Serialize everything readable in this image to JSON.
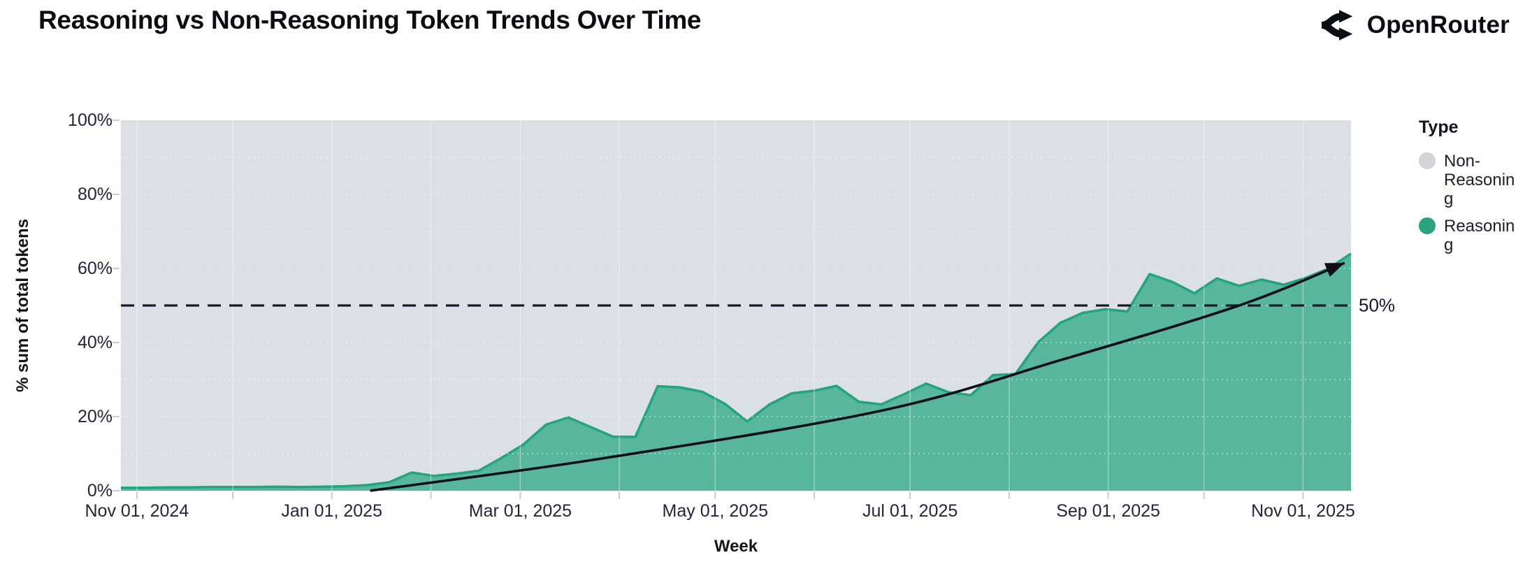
{
  "header": {
    "title": "Reasoning vs Non-Reasoning Token Trends Over Time",
    "brand": "OpenRouter"
  },
  "legend": {
    "title": "Type",
    "items": [
      {
        "label": "Non-Reasoning",
        "color": "#d2d4da"
      },
      {
        "label": "Reasoning",
        "color": "#2aa37f"
      }
    ]
  },
  "chart_data": {
    "type": "area",
    "stacked_percent": true,
    "title": "Reasoning vs Non-Reasoning Token Trends Over Time",
    "xlabel": "Week",
    "ylabel": "% sum of total tokens",
    "ylim": [
      0,
      100
    ],
    "x_range": [
      "2024-10-27",
      "2025-11-16"
    ],
    "y_ticks": [
      0,
      20,
      40,
      60,
      80,
      100
    ],
    "y_tick_labels": [
      "0%",
      "20%",
      "40%",
      "60%",
      "80%",
      "100%"
    ],
    "y_minor_grid_step": 10,
    "x_tick_labels": [
      {
        "date": "2024-11-01",
        "label": "Nov 01, 2024"
      },
      {
        "date": "2025-01-01",
        "label": "Jan 01, 2025"
      },
      {
        "date": "2025-03-01",
        "label": "Mar 01, 2025"
      },
      {
        "date": "2025-05-01",
        "label": "May 01, 2025"
      },
      {
        "date": "2025-07-01",
        "label": "Jul 01, 2025"
      },
      {
        "date": "2025-09-01",
        "label": "Sep 01, 2025"
      },
      {
        "date": "2025-11-01",
        "label": "Nov 01, 2025"
      }
    ],
    "month_ticks": [
      "2024-11-01",
      "2024-12-01",
      "2025-01-01",
      "2025-02-01",
      "2025-03-01",
      "2025-04-01",
      "2025-05-01",
      "2025-06-01",
      "2025-07-01",
      "2025-08-01",
      "2025-09-01",
      "2025-10-01",
      "2025-11-01"
    ],
    "series": [
      {
        "name": "Non-Reasoning",
        "color": "#dbdfe6",
        "stacking": "remainder_to_100_percent"
      },
      {
        "name": "Reasoning",
        "color": "#57b69b",
        "stroke": "#22a47c",
        "points": [
          [
            "2024-10-27",
            0.8
          ],
          [
            "2024-11-03",
            0.8
          ],
          [
            "2024-11-10",
            0.9
          ],
          [
            "2024-11-17",
            0.9
          ],
          [
            "2024-11-24",
            1.0
          ],
          [
            "2024-12-01",
            1.0
          ],
          [
            "2024-12-08",
            1.0
          ],
          [
            "2024-12-15",
            1.1
          ],
          [
            "2024-12-22",
            1.0
          ],
          [
            "2024-12-29",
            1.1
          ],
          [
            "2025-01-05",
            1.2
          ],
          [
            "2025-01-12",
            1.5
          ],
          [
            "2025-01-19",
            2.3
          ],
          [
            "2025-01-26",
            4.9
          ],
          [
            "2025-02-02",
            4.0
          ],
          [
            "2025-02-09",
            4.6
          ],
          [
            "2025-02-16",
            5.4
          ],
          [
            "2025-02-23",
            8.8
          ],
          [
            "2025-03-02",
            12.5
          ],
          [
            "2025-03-09",
            17.8
          ],
          [
            "2025-03-16",
            19.8
          ],
          [
            "2025-03-23",
            17.2
          ],
          [
            "2025-03-30",
            14.6
          ],
          [
            "2025-04-06",
            14.5
          ],
          [
            "2025-04-13",
            28.2
          ],
          [
            "2025-04-20",
            27.9
          ],
          [
            "2025-04-27",
            26.7
          ],
          [
            "2025-05-04",
            23.5
          ],
          [
            "2025-05-11",
            18.7
          ],
          [
            "2025-05-18",
            23.3
          ],
          [
            "2025-05-25",
            26.3
          ],
          [
            "2025-06-01",
            27.0
          ],
          [
            "2025-06-08",
            28.3
          ],
          [
            "2025-06-15",
            24.0
          ],
          [
            "2025-06-22",
            23.3
          ],
          [
            "2025-06-29",
            26.0
          ],
          [
            "2025-07-06",
            28.9
          ],
          [
            "2025-07-13",
            26.6
          ],
          [
            "2025-07-20",
            25.8
          ],
          [
            "2025-07-27",
            31.2
          ],
          [
            "2025-08-03",
            31.5
          ],
          [
            "2025-08-10",
            40.0
          ],
          [
            "2025-08-17",
            45.3
          ],
          [
            "2025-08-24",
            48.0
          ],
          [
            "2025-08-31",
            49.0
          ],
          [
            "2025-09-07",
            48.4
          ],
          [
            "2025-09-14",
            58.5
          ],
          [
            "2025-09-21",
            56.4
          ],
          [
            "2025-09-28",
            53.3
          ],
          [
            "2025-10-05",
            57.3
          ],
          [
            "2025-10-12",
            55.3
          ],
          [
            "2025-10-19",
            57.0
          ],
          [
            "2025-10-26",
            55.6
          ],
          [
            "2025-11-02",
            57.5
          ],
          [
            "2025-11-09",
            60.0
          ],
          [
            "2025-11-16",
            64.0
          ]
        ]
      }
    ],
    "annotations": {
      "fifty_line": {
        "y": 50,
        "label": "50%",
        "color": "#181b2b"
      },
      "trend_arrow": {
        "color": "#0d0f1a",
        "points": [
          [
            "2025-01-13",
            0.0
          ],
          [
            "2025-03-25",
            8.5
          ],
          [
            "2025-06-22",
            21.6
          ],
          [
            "2025-08-18",
            35.5
          ],
          [
            "2025-10-12",
            50.0
          ],
          [
            "2025-11-14",
            61.5
          ]
        ]
      }
    },
    "grid": {
      "vertical_color": "rgba(255,255,255,0.38)",
      "horizontal_color": "rgba(255,255,255,0.55)",
      "tick_color": "#c9ccd4"
    }
  }
}
